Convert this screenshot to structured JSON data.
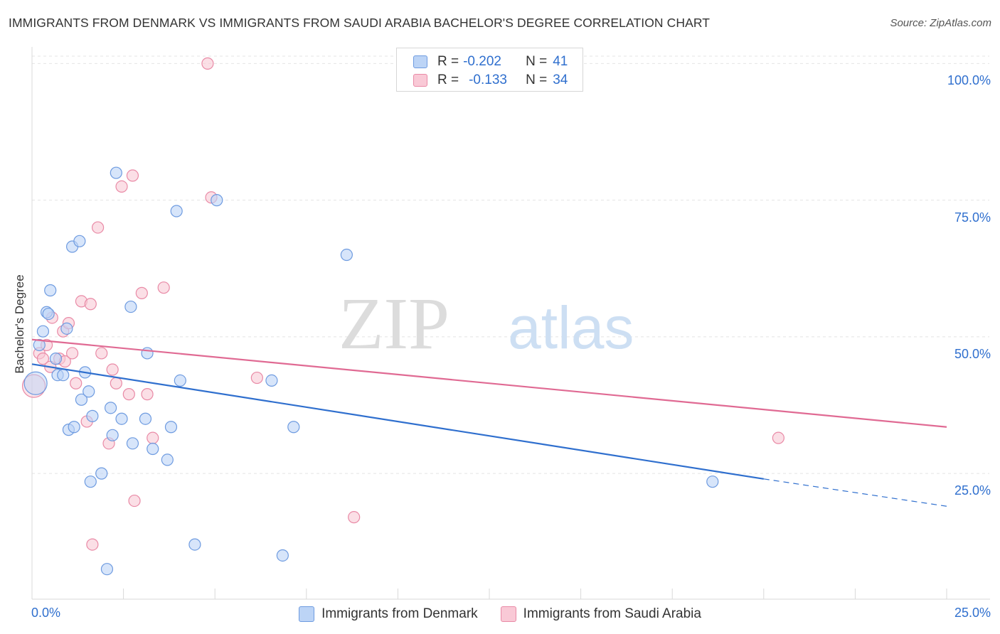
{
  "title": "IMMIGRANTS FROM DENMARK VS IMMIGRANTS FROM SAUDI ARABIA BACHELOR'S DEGREE CORRELATION CHART",
  "source": "Source: ZipAtlas.com",
  "watermark": {
    "part1": "ZIP",
    "part2": "atlas"
  },
  "legend": {
    "r_label": "R =",
    "n_label": "N =",
    "denmark": {
      "r": "-0.202",
      "n": "41"
    },
    "saudi": {
      "r": "-0.133",
      "n": "34"
    }
  },
  "colors": {
    "denmark_fill": "#bcd4f6",
    "denmark_stroke": "#6e9be0",
    "denmark_line": "#2f6fce",
    "saudi_fill": "#f9c9d6",
    "saudi_stroke": "#e98aa6",
    "saudi_line": "#e06a93",
    "tick_text": "#2f6fce"
  },
  "chart_data": {
    "type": "scatter",
    "title": "IMMIGRANTS FROM DENMARK VS IMMIGRANTS FROM SAUDI ARABIA BACHELOR'S DEGREE CORRELATION CHART",
    "xlabel": "",
    "ylabel": "Bachelor's Degree",
    "xlim": [
      0,
      25
    ],
    "ylim": [
      2,
      102
    ],
    "x_tick_labels": [
      "0.0%",
      "25.0%"
    ],
    "y_ticks": [
      25,
      50,
      75,
      100
    ],
    "y_tick_labels": [
      "25.0%",
      "50.0%",
      "75.0%",
      "100.0%"
    ],
    "grid": true,
    "series": [
      {
        "name": "Immigrants from Denmark",
        "points": [
          [
            0.1,
            41.5
          ],
          [
            0.2,
            48.5
          ],
          [
            0.3,
            51.0
          ],
          [
            0.4,
            54.5
          ],
          [
            0.5,
            58.5
          ],
          [
            0.45,
            54.2
          ],
          [
            0.65,
            46.0
          ],
          [
            0.7,
            43.0
          ],
          [
            0.85,
            43.0
          ],
          [
            0.95,
            51.5
          ],
          [
            1.0,
            33.0
          ],
          [
            1.1,
            66.5
          ],
          [
            1.15,
            33.5
          ],
          [
            1.3,
            67.5
          ],
          [
            1.35,
            38.5
          ],
          [
            1.45,
            43.5
          ],
          [
            1.55,
            40.0
          ],
          [
            1.65,
            35.5
          ],
          [
            1.6,
            23.5
          ],
          [
            1.9,
            25.0
          ],
          [
            2.05,
            7.5
          ],
          [
            2.15,
            37.0
          ],
          [
            2.2,
            32.0
          ],
          [
            2.3,
            80.0
          ],
          [
            2.45,
            35.0
          ],
          [
            2.7,
            55.5
          ],
          [
            2.75,
            30.5
          ],
          [
            3.1,
            35.0
          ],
          [
            3.15,
            47.0
          ],
          [
            3.3,
            29.5
          ],
          [
            3.7,
            27.5
          ],
          [
            3.8,
            33.5
          ],
          [
            3.95,
            73.0
          ],
          [
            4.05,
            42.0
          ],
          [
            4.45,
            12.0
          ],
          [
            5.05,
            75.0
          ],
          [
            6.55,
            42.0
          ],
          [
            6.85,
            10.0
          ],
          [
            7.15,
            33.5
          ],
          [
            8.6,
            65.0
          ],
          [
            18.6,
            23.5
          ]
        ]
      },
      {
        "name": "Immigrants from Saudi Arabia",
        "points": [
          [
            0.05,
            41.0
          ],
          [
            0.2,
            47.0
          ],
          [
            0.3,
            46.0
          ],
          [
            0.4,
            48.5
          ],
          [
            0.5,
            44.5
          ],
          [
            0.55,
            53.5
          ],
          [
            0.75,
            46.0
          ],
          [
            0.85,
            51.0
          ],
          [
            0.9,
            45.5
          ],
          [
            1.0,
            52.5
          ],
          [
            1.1,
            47.0
          ],
          [
            1.2,
            41.5
          ],
          [
            1.35,
            56.5
          ],
          [
            1.5,
            34.5
          ],
          [
            1.6,
            56.0
          ],
          [
            1.65,
            12.0
          ],
          [
            1.8,
            70.0
          ],
          [
            1.9,
            47.0
          ],
          [
            2.1,
            30.5
          ],
          [
            2.2,
            44.0
          ],
          [
            2.3,
            41.5
          ],
          [
            2.45,
            77.5
          ],
          [
            2.65,
            39.5
          ],
          [
            2.75,
            79.5
          ],
          [
            2.8,
            20.0
          ],
          [
            3.0,
            58.0
          ],
          [
            3.15,
            39.5
          ],
          [
            3.3,
            31.5
          ],
          [
            3.6,
            59.0
          ],
          [
            4.8,
            100.0
          ],
          [
            4.9,
            75.5
          ],
          [
            6.15,
            42.5
          ],
          [
            8.8,
            17.0
          ],
          [
            20.4,
            31.5
          ]
        ]
      }
    ],
    "trend_lines": [
      {
        "series": "Immigrants from Denmark",
        "x": [
          0,
          20
        ],
        "y": [
          45.0,
          24.0
        ],
        "dashed_extension": [
          20,
          25,
          24.0,
          19.0
        ]
      },
      {
        "series": "Immigrants from Saudi Arabia",
        "x": [
          0,
          25
        ],
        "y": [
          49.5,
          33.5
        ]
      }
    ]
  },
  "bottom_legend": {
    "denmark": "Immigrants from Denmark",
    "saudi": "Immigrants from Saudi Arabia"
  }
}
